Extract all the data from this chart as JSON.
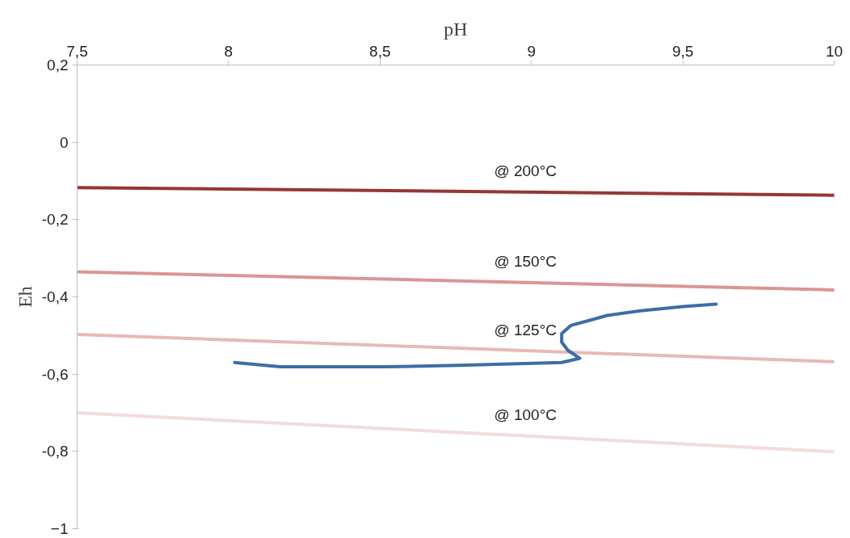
{
  "chart_data": {
    "type": "line",
    "xlabel": "pH",
    "ylabel": "Eh",
    "xlim": [
      7.5,
      10
    ],
    "ylim": [
      -1,
      0.2
    ],
    "xticks": [
      {
        "value": 7.5,
        "label": "7,5"
      },
      8,
      {
        "value": 8.5,
        "label": "8,5"
      },
      9,
      {
        "value": 9.5,
        "label": "9,5"
      },
      10
    ],
    "yticks": [
      -1,
      {
        "value": -0.8,
        "label": "-0,8"
      },
      {
        "value": -0.6,
        "label": "-0,6"
      },
      {
        "value": -0.4,
        "label": "-0,4"
      },
      {
        "value": -0.2,
        "label": "-0,2"
      },
      0,
      {
        "value": 0.2,
        "label": "0,2"
      }
    ],
    "grid": false,
    "marker": "none",
    "line_style": "solid",
    "series": [
      {
        "name": "@ 200°C",
        "color": "#953735",
        "x": [
          7.5,
          10
        ],
        "values": [
          -0.117,
          -0.137
        ]
      },
      {
        "name": "@ 150°C",
        "color": "#d99594",
        "x": [
          7.5,
          10
        ],
        "values": [
          -0.335,
          -0.382
        ]
      },
      {
        "name": "@ 125°C",
        "color": "#e6b9b8",
        "x": [
          7.5,
          10
        ],
        "values": [
          -0.497,
          -0.568
        ]
      },
      {
        "name": "@ 100°C",
        "color": "#f2dcdb",
        "x": [
          7.5,
          10
        ],
        "values": [
          -0.7,
          -0.801
        ]
      },
      {
        "color": "#3b6ea5",
        "x": [
          8.02,
          8.17,
          8.52,
          8.76,
          9.1,
          9.16,
          9.12,
          9.1,
          9.1,
          9.13,
          9.2,
          9.25,
          9.36,
          9.5,
          9.61
        ],
        "values": [
          -0.57,
          -0.581,
          -0.581,
          -0.577,
          -0.57,
          -0.559,
          -0.538,
          -0.517,
          -0.495,
          -0.474,
          -0.459,
          -0.448,
          -0.436,
          -0.425,
          -0.419
        ]
      }
    ]
  }
}
